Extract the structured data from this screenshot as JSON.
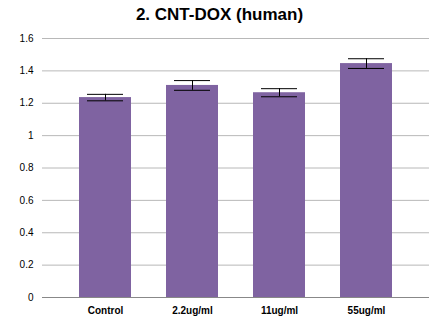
{
  "chart_data": {
    "type": "bar",
    "title": "2. CNT-DOX (human)",
    "categories": [
      "Control",
      "2.2ug/ml",
      "11ug/ml",
      "55ug/ml"
    ],
    "values": [
      1.235,
      1.31,
      1.265,
      1.445
    ],
    "errors": [
      0.02,
      0.03,
      0.025,
      0.03
    ],
    "color": "#7f63a1",
    "ylim": [
      0,
      1.6
    ],
    "yticks": [
      0,
      0.2,
      0.4,
      0.6,
      0.8,
      1,
      1.2,
      1.4,
      1.6
    ],
    "grid": true
  }
}
